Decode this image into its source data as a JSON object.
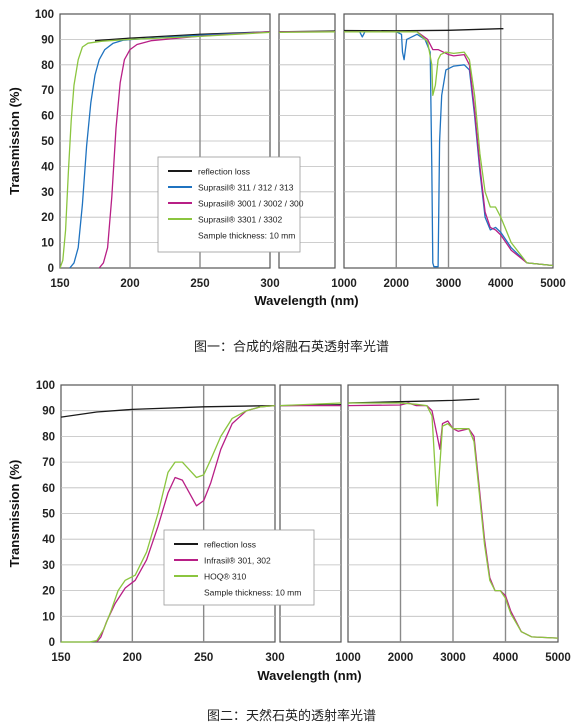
{
  "chart_data": [
    {
      "type": "line",
      "caption": "图一：合成的熔融石英透射率光谱",
      "xlabel": "Wavelength (nm)",
      "ylabel": "Transmission (%)",
      "ylim": [
        0,
        100
      ],
      "yticks": [
        0,
        10,
        20,
        30,
        40,
        50,
        60,
        70,
        80,
        90,
        100
      ],
      "grid": true,
      "panels": [
        {
          "xlim": [
            150,
            300
          ],
          "xticks": [
            150,
            200,
            250,
            300
          ],
          "tick_labels": [
            "150",
            "200",
            "250",
            "300"
          ]
        },
        {
          "xlim": [
            300,
            330
          ],
          "xticks": [],
          "tick_labels": []
        },
        {
          "xlim": [
            1000,
            5000
          ],
          "xticks": [
            1000,
            2000,
            3000,
            4000,
            5000
          ],
          "tick_labels": [
            "1000",
            "2000",
            "3000",
            "4000",
            "5000"
          ]
        }
      ],
      "legend": {
        "placement": "center-left",
        "entries": [
          "reflection loss",
          "Suprasil® 311 / 312 / 313",
          "Suprasil® 3001 / 3002 / 300",
          "Suprasil® 3301 / 3302"
        ],
        "note": "Sample thickness: 10 mm"
      },
      "series": [
        {
          "name": "reflection loss",
          "color": "#1a1a1a",
          "points": [
            [
              175,
              89.5
            ],
            [
              200,
              90.5
            ],
            [
              250,
              92
            ],
            [
              300,
              93
            ],
            [
              330,
              93.3
            ],
            [
              1000,
              93.5
            ],
            [
              2000,
              93.4
            ],
            [
              3000,
              93.6
            ],
            [
              4000,
              94.2
            ],
            [
              4050,
              94.2
            ]
          ]
        },
        {
          "name": "Suprasil® 311 / 312 / 313",
          "color": "#1f73c0",
          "points": [
            [
              157,
              0
            ],
            [
              160,
              2
            ],
            [
              163,
              8
            ],
            [
              166,
              25
            ],
            [
              169,
              48
            ],
            [
              172,
              65
            ],
            [
              175,
              76
            ],
            [
              178,
              82
            ],
            [
              182,
              86
            ],
            [
              188,
              88.5
            ],
            [
              195,
              89.7
            ],
            [
              210,
              90.3
            ],
            [
              250,
              91.6
            ],
            [
              300,
              93
            ],
            [
              330,
              93
            ],
            [
              1000,
              93
            ],
            [
              1300,
              93
            ],
            [
              1350,
              91
            ],
            [
              1400,
              93
            ],
            [
              2000,
              93
            ],
            [
              2100,
              92
            ],
            [
              2120,
              85
            ],
            [
              2150,
              82
            ],
            [
              2200,
              90
            ],
            [
              2400,
              92
            ],
            [
              2550,
              90
            ],
            [
              2650,
              85
            ],
            [
              2680,
              40
            ],
            [
              2700,
              2
            ],
            [
              2720,
              0.5
            ],
            [
              2800,
              0.5
            ],
            [
              2830,
              50
            ],
            [
              2870,
              68
            ],
            [
              2950,
              78
            ],
            [
              3100,
              79.5
            ],
            [
              3300,
              80
            ],
            [
              3400,
              78
            ],
            [
              3500,
              60
            ],
            [
              3600,
              38
            ],
            [
              3700,
              20
            ],
            [
              3800,
              15
            ],
            [
              3900,
              16
            ],
            [
              4000,
              14
            ],
            [
              4200,
              8
            ],
            [
              4500,
              2
            ],
            [
              5000,
              1
            ]
          ]
        },
        {
          "name": "Suprasil® 3001 / 3002 / 300",
          "color": "#b81f86",
          "points": [
            [
              178,
              0
            ],
            [
              181,
              2
            ],
            [
              184,
              8
            ],
            [
              187,
              28
            ],
            [
              190,
              55
            ],
            [
              193,
              73
            ],
            [
              196,
              82
            ],
            [
              200,
              86
            ],
            [
              205,
              88
            ],
            [
              215,
              89.5
            ],
            [
              250,
              91.3
            ],
            [
              300,
              93
            ],
            [
              330,
              93
            ],
            [
              1000,
              93
            ],
            [
              2000,
              93
            ],
            [
              2400,
              93
            ],
            [
              2600,
              90
            ],
            [
              2700,
              86
            ],
            [
              2800,
              86
            ],
            [
              2900,
              85
            ],
            [
              3000,
              84
            ],
            [
              3100,
              83.5
            ],
            [
              3300,
              84
            ],
            [
              3400,
              80
            ],
            [
              3500,
              62
            ],
            [
              3600,
              40
            ],
            [
              3700,
              22
            ],
            [
              3800,
              16
            ],
            [
              3900,
              15
            ],
            [
              4000,
              13
            ],
            [
              4200,
              7
            ],
            [
              4500,
              2
            ],
            [
              5000,
              1
            ]
          ]
        },
        {
          "name": "Suprasil® 3301 / 3302",
          "color": "#8bc53f",
          "points": [
            [
              150,
              0
            ],
            [
              152,
              3
            ],
            [
              154,
              15
            ],
            [
              156,
              38
            ],
            [
              158,
              58
            ],
            [
              160,
              72
            ],
            [
              163,
              82
            ],
            [
              166,
              87
            ],
            [
              170,
              88.5
            ],
            [
              180,
              89.3
            ],
            [
              200,
              90
            ],
            [
              250,
              91.2
            ],
            [
              300,
              92.8
            ],
            [
              330,
              93
            ],
            [
              1000,
              93
            ],
            [
              2000,
              93
            ],
            [
              2400,
              93
            ],
            [
              2600,
              89
            ],
            [
              2680,
              80
            ],
            [
              2700,
              68
            ],
            [
              2750,
              72
            ],
            [
              2800,
              82
            ],
            [
              2850,
              84
            ],
            [
              2950,
              85
            ],
            [
              3100,
              84.5
            ],
            [
              3300,
              85
            ],
            [
              3400,
              82
            ],
            [
              3500,
              68
            ],
            [
              3600,
              45
            ],
            [
              3700,
              30
            ],
            [
              3800,
              24
            ],
            [
              3900,
              24
            ],
            [
              4000,
              20
            ],
            [
              4200,
              10
            ],
            [
              4500,
              2
            ],
            [
              5000,
              1
            ]
          ]
        }
      ]
    },
    {
      "type": "line",
      "caption": "图二：天然石英的透射率光谱",
      "xlabel": "Wavelength (nm)",
      "ylabel": "Transmission (%)",
      "ylim": [
        0,
        100
      ],
      "yticks": [
        0,
        10,
        20,
        30,
        40,
        50,
        60,
        70,
        80,
        90,
        100
      ],
      "grid": true,
      "panels": [
        {
          "xlim": [
            150,
            300
          ],
          "xticks": [
            150,
            200,
            250,
            300
          ],
          "tick_labels": [
            "150",
            "200",
            "250",
            "300"
          ]
        },
        {
          "xlim": [
            300,
            345
          ],
          "xticks": [],
          "tick_labels": []
        },
        {
          "xlim": [
            1000,
            5000
          ],
          "xticks": [
            1000,
            2000,
            3000,
            4000,
            5000
          ],
          "tick_labels": [
            "1000",
            "2000",
            "3000",
            "4000",
            "5000"
          ]
        }
      ],
      "legend": {
        "placement": "center",
        "entries": [
          "reflection loss",
          "Infrasil® 301, 302",
          "HOQ® 310"
        ],
        "note": "Sample thickness: 10 mm"
      },
      "series": [
        {
          "name": "reflection loss",
          "color": "#1a1a1a",
          "points": [
            [
              150,
              87.5
            ],
            [
              175,
              89.5
            ],
            [
              200,
              90.5
            ],
            [
              250,
              91.5
            ],
            [
              300,
              92
            ],
            [
              345,
              92.3
            ],
            [
              1000,
              93
            ],
            [
              2000,
              93.5
            ],
            [
              3000,
              94
            ],
            [
              3500,
              94.5
            ]
          ]
        },
        {
          "name": "Infrasil® 301, 302",
          "color": "#b81f86",
          "points": [
            [
              175,
              0
            ],
            [
              178,
              2
            ],
            [
              182,
              8
            ],
            [
              188,
              15
            ],
            [
              195,
              21
            ],
            [
              202,
              24
            ],
            [
              210,
              32
            ],
            [
              218,
              45
            ],
            [
              225,
              58
            ],
            [
              230,
              64
            ],
            [
              235,
              63
            ],
            [
              240,
              58
            ],
            [
              245,
              53
            ],
            [
              250,
              55
            ],
            [
              255,
              62
            ],
            [
              262,
              75
            ],
            [
              270,
              85
            ],
            [
              280,
              90
            ],
            [
              290,
              91.5
            ],
            [
              300,
              92
            ],
            [
              345,
              92
            ],
            [
              1000,
              92
            ],
            [
              2000,
              92.2
            ],
            [
              2150,
              93
            ],
            [
              2300,
              92
            ],
            [
              2500,
              92
            ],
            [
              2600,
              90
            ],
            [
              2700,
              80
            ],
            [
              2750,
              75
            ],
            [
              2800,
              85
            ],
            [
              2900,
              86
            ],
            [
              3000,
              83
            ],
            [
              3100,
              82
            ],
            [
              3300,
              83
            ],
            [
              3400,
              80
            ],
            [
              3500,
              60
            ],
            [
              3600,
              40
            ],
            [
              3700,
              25
            ],
            [
              3800,
              20
            ],
            [
              3900,
              20
            ],
            [
              4000,
              18
            ],
            [
              4100,
              12
            ],
            [
              4300,
              4
            ],
            [
              4500,
              2
            ],
            [
              5000,
              1.5
            ]
          ]
        },
        {
          "name": "HOQ® 310",
          "color": "#8bc53f",
          "points": [
            [
              150,
              0
            ],
            [
              170,
              0
            ],
            [
              175,
              0.5
            ],
            [
              180,
              5
            ],
            [
              185,
              12
            ],
            [
              190,
              20
            ],
            [
              195,
              24
            ],
            [
              202,
              26
            ],
            [
              210,
              35
            ],
            [
              218,
              50
            ],
            [
              225,
              66
            ],
            [
              230,
              70
            ],
            [
              235,
              70
            ],
            [
              240,
              67
            ],
            [
              245,
              64
            ],
            [
              250,
              65
            ],
            [
              255,
              71
            ],
            [
              262,
              80
            ],
            [
              270,
              87
            ],
            [
              280,
              90
            ],
            [
              290,
              91.5
            ],
            [
              300,
              92
            ],
            [
              345,
              93
            ],
            [
              1000,
              93
            ],
            [
              2000,
              93
            ],
            [
              2300,
              92.5
            ],
            [
              2500,
              92
            ],
            [
              2600,
              88
            ],
            [
              2680,
              60
            ],
            [
              2700,
              53
            ],
            [
              2720,
              60
            ],
            [
              2800,
              84
            ],
            [
              2900,
              85
            ],
            [
              3000,
              83
            ],
            [
              3100,
              83
            ],
            [
              3300,
              83
            ],
            [
              3400,
              78
            ],
            [
              3500,
              58
            ],
            [
              3600,
              38
            ],
            [
              3700,
              24
            ],
            [
              3800,
              20
            ],
            [
              3900,
              20
            ],
            [
              4000,
              17
            ],
            [
              4100,
              11
            ],
            [
              4300,
              4
            ],
            [
              4500,
              2
            ],
            [
              5000,
              1.5
            ]
          ]
        }
      ]
    }
  ]
}
